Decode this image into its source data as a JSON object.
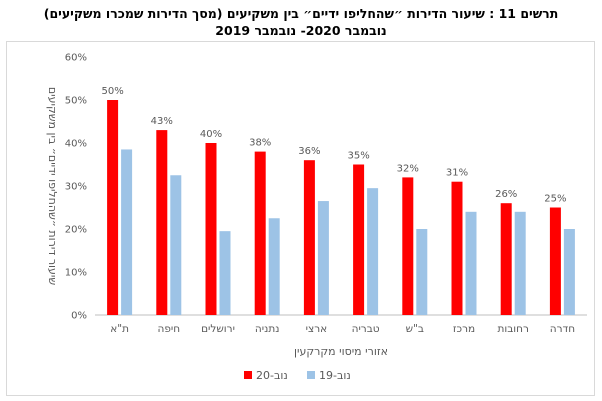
{
  "page": {
    "title_line1": "תרשים 11 :  שיעור הדירות ״שהחליפו ידיים״ בין משקיעים (מסך הדירות שמכרו משקיעים)",
    "title_line2": "נובמבר 2020- נובמבר 2019"
  },
  "chart_data": {
    "type": "bar",
    "xlabel": "אזורי מיסוי מקרקעין",
    "ylabel": "שיעור דירות ״שהחליפו ידיים״ בין משקיעים",
    "ylim": [
      0,
      60
    ],
    "yticks": [
      "0%",
      "10%",
      "20%",
      "30%",
      "40%",
      "50%",
      "60%"
    ],
    "grid": false,
    "legend_position": "bottom",
    "categories": [
      "ת\"א",
      "חיפה",
      "ירושלים",
      "נתניה",
      "ארצי",
      "טבריה",
      "ב\"ש",
      "מרכז",
      "רחובות",
      "חדרה"
    ],
    "series": [
      {
        "name": "נוב-20",
        "color": "#ff0000",
        "values": [
          50,
          43,
          40,
          38,
          36,
          35,
          32,
          31,
          26,
          25
        ],
        "labels": [
          "50%",
          "43%",
          "40%",
          "38%",
          "36%",
          "35%",
          "32%",
          "31%",
          "26%",
          "25%"
        ]
      },
      {
        "name": "נוב-19",
        "color": "#9dc3e6",
        "values": [
          38.5,
          32.5,
          19.5,
          22.5,
          26.5,
          29.5,
          20,
          24,
          24,
          20
        ]
      }
    ]
  }
}
